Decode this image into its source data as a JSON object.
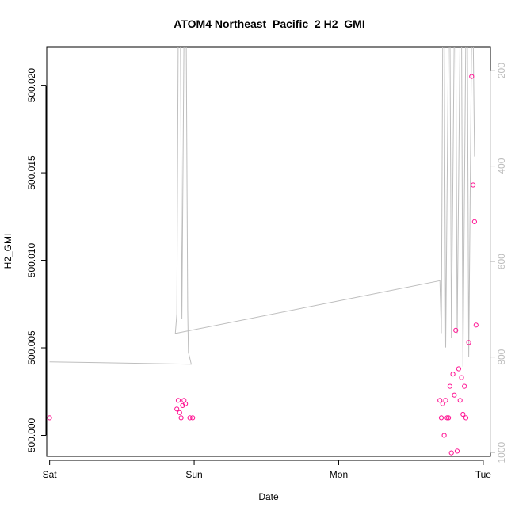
{
  "chart_data": {
    "type": "scatter",
    "title": "ATOM4 Northeast_Pacific_2 H2_GMI",
    "xlabel": "Date",
    "ylabel": "H2_GMI",
    "x_ticks": [
      "Sat",
      "Sun",
      "Mon",
      "Tue"
    ],
    "y_ticks": [
      "500.000",
      "500.005",
      "500.010",
      "500.015",
      "500.020"
    ],
    "y_right_ticks": [
      "200",
      "400",
      "600",
      "800",
      "1000"
    ],
    "xlim": [
      -0.02,
      3.05
    ],
    "ylim": [
      499.9988,
      500.0222
    ],
    "y_right_lim": [
      1008,
      150
    ],
    "points_color": "#ff1493",
    "line_color": "#bebebe",
    "points": [
      [
        0.0,
        500.001
      ],
      [
        0.88,
        500.0015
      ],
      [
        0.89,
        500.002
      ],
      [
        0.9,
        500.0013
      ],
      [
        0.91,
        500.001
      ],
      [
        0.92,
        500.0017
      ],
      [
        0.93,
        500.002
      ],
      [
        0.94,
        500.0018
      ],
      [
        0.97,
        500.001
      ],
      [
        0.99,
        500.001
      ],
      [
        2.7,
        500.002
      ],
      [
        2.71,
        500.001
      ],
      [
        2.72,
        500.0018
      ],
      [
        2.73,
        500.0
      ],
      [
        2.74,
        500.002
      ],
      [
        2.75,
        500.001
      ],
      [
        2.76,
        500.001
      ],
      [
        2.77,
        500.0028
      ],
      [
        2.78,
        499.999
      ],
      [
        2.79,
        500.0035
      ],
      [
        2.8,
        500.0023
      ],
      [
        2.81,
        500.006
      ],
      [
        2.82,
        499.9991
      ],
      [
        2.83,
        500.0038
      ],
      [
        2.84,
        500.002
      ],
      [
        2.85,
        500.0033
      ],
      [
        2.86,
        500.0012
      ],
      [
        2.87,
        500.0028
      ],
      [
        2.88,
        500.001
      ],
      [
        2.9,
        500.0053
      ],
      [
        2.92,
        500.0205
      ],
      [
        2.93,
        500.0143
      ],
      [
        2.94,
        500.0122
      ],
      [
        2.95,
        500.0063
      ]
    ],
    "line": [
      [
        0.0,
        810
      ],
      [
        0.98,
        815
      ],
      [
        0.96,
        790
      ],
      [
        0.955,
        700
      ],
      [
        0.945,
        110
      ],
      [
        0.93,
        110
      ],
      [
        0.915,
        720
      ],
      [
        0.905,
        110
      ],
      [
        0.89,
        110
      ],
      [
        0.88,
        710
      ],
      [
        0.87,
        750
      ],
      [
        0.88,
        750
      ],
      [
        2.7,
        640
      ],
      [
        2.71,
        750
      ],
      [
        2.72,
        110
      ],
      [
        2.73,
        110
      ],
      [
        2.74,
        780
      ],
      [
        2.76,
        110
      ],
      [
        2.77,
        110
      ],
      [
        2.78,
        760
      ],
      [
        2.8,
        110
      ],
      [
        2.81,
        110
      ],
      [
        2.82,
        750
      ],
      [
        2.84,
        110
      ],
      [
        2.85,
        110
      ],
      [
        2.86,
        820
      ],
      [
        2.88,
        110
      ],
      [
        2.89,
        110
      ],
      [
        2.9,
        800
      ],
      [
        2.92,
        110
      ],
      [
        2.93,
        110
      ],
      [
        2.94,
        380
      ]
    ]
  }
}
